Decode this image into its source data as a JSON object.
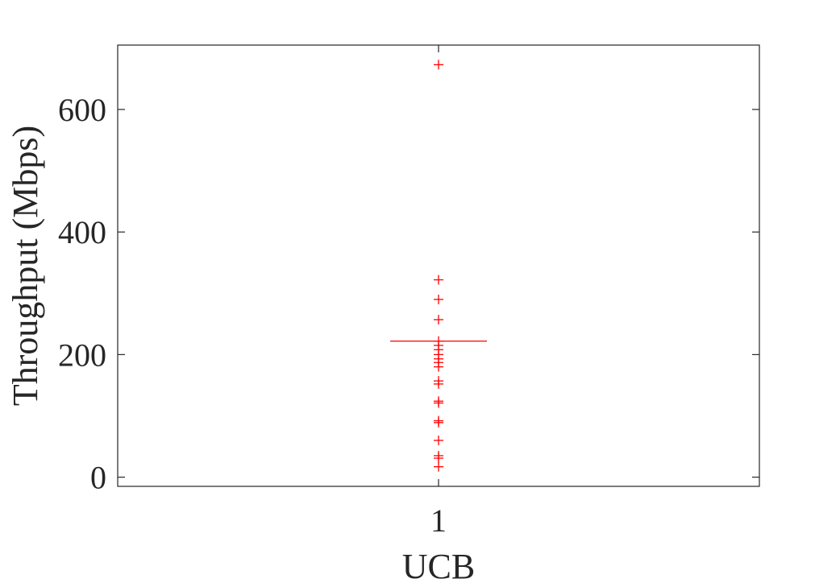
{
  "chart_data": {
    "type": "box",
    "title": "",
    "xlabel": "UCB",
    "ylabel": "Throughput (Mbps)",
    "categories": [
      "1"
    ],
    "ylim": [
      -15,
      705
    ],
    "yticks": [
      0,
      200,
      400,
      600
    ],
    "grid": false,
    "series": [
      {
        "median": 222,
        "outliers": [
          673,
          322,
          290,
          257,
          222,
          215,
          208,
          200,
          193,
          187,
          180,
          157,
          152,
          124,
          121,
          92,
          89,
          60,
          35,
          31,
          17
        ]
      }
    ],
    "colors": {
      "outlier": "#ff0000",
      "median": "#ff0000",
      "axis": "#262626"
    }
  }
}
